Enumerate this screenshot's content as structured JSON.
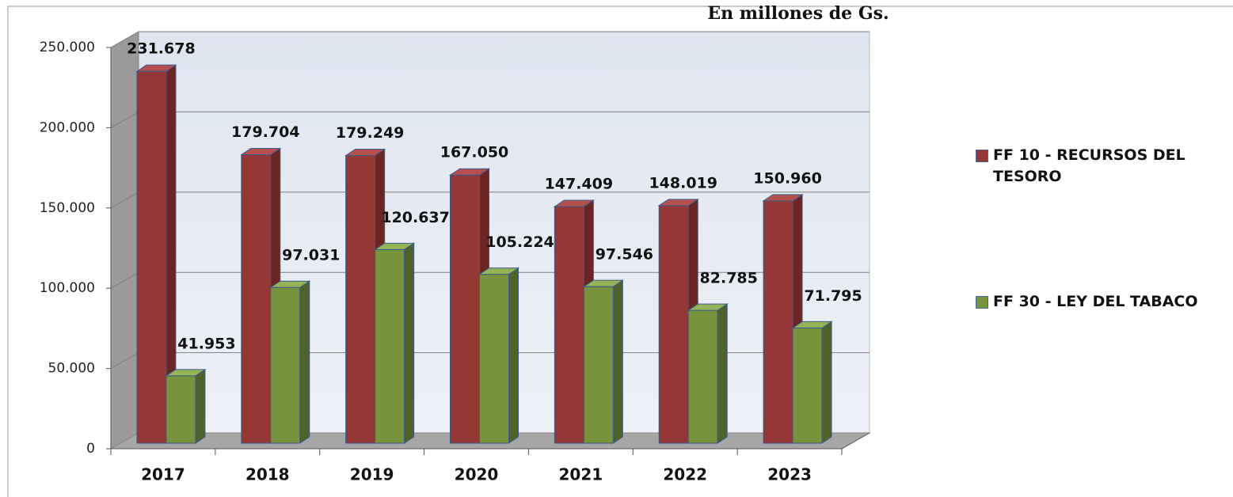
{
  "chart_data": {
    "type": "bar3d",
    "title": "En millones de Gs.",
    "categories": [
      "2017",
      "2018",
      "2019",
      "2020",
      "2021",
      "2022",
      "2023"
    ],
    "series": [
      {
        "name": "FF 10 - RECURSOS DEL TESORO",
        "color": "#953735",
        "values": [
          231678,
          179704,
          179249,
          167050,
          147409,
          148019,
          150960
        ],
        "value_labels": [
          "231.678",
          "179.704",
          "179.249",
          "167.050",
          "147.409",
          "148.019",
          "150.960"
        ]
      },
      {
        "name": "FF 30 - LEY DEL TABACO",
        "color": "#77933c",
        "values": [
          41953,
          97031,
          120637,
          105224,
          97546,
          82785,
          71795
        ],
        "value_labels": [
          "41.953",
          "97.031",
          "120.637",
          "105.224",
          "97.546",
          "82.785",
          "71.795"
        ]
      }
    ],
    "ylim": [
      0,
      250000
    ],
    "yticks": [
      0,
      {
        "value": 50000,
        "label": "50.000"
      },
      {
        "value": 100000,
        "label": "100.000"
      },
      {
        "value": 150000,
        "label": "150.000"
      },
      {
        "value": 200000,
        "label": "200.000"
      },
      {
        "value": 250000,
        "label": "250.000"
      }
    ],
    "grid": true,
    "legend": "right"
  }
}
